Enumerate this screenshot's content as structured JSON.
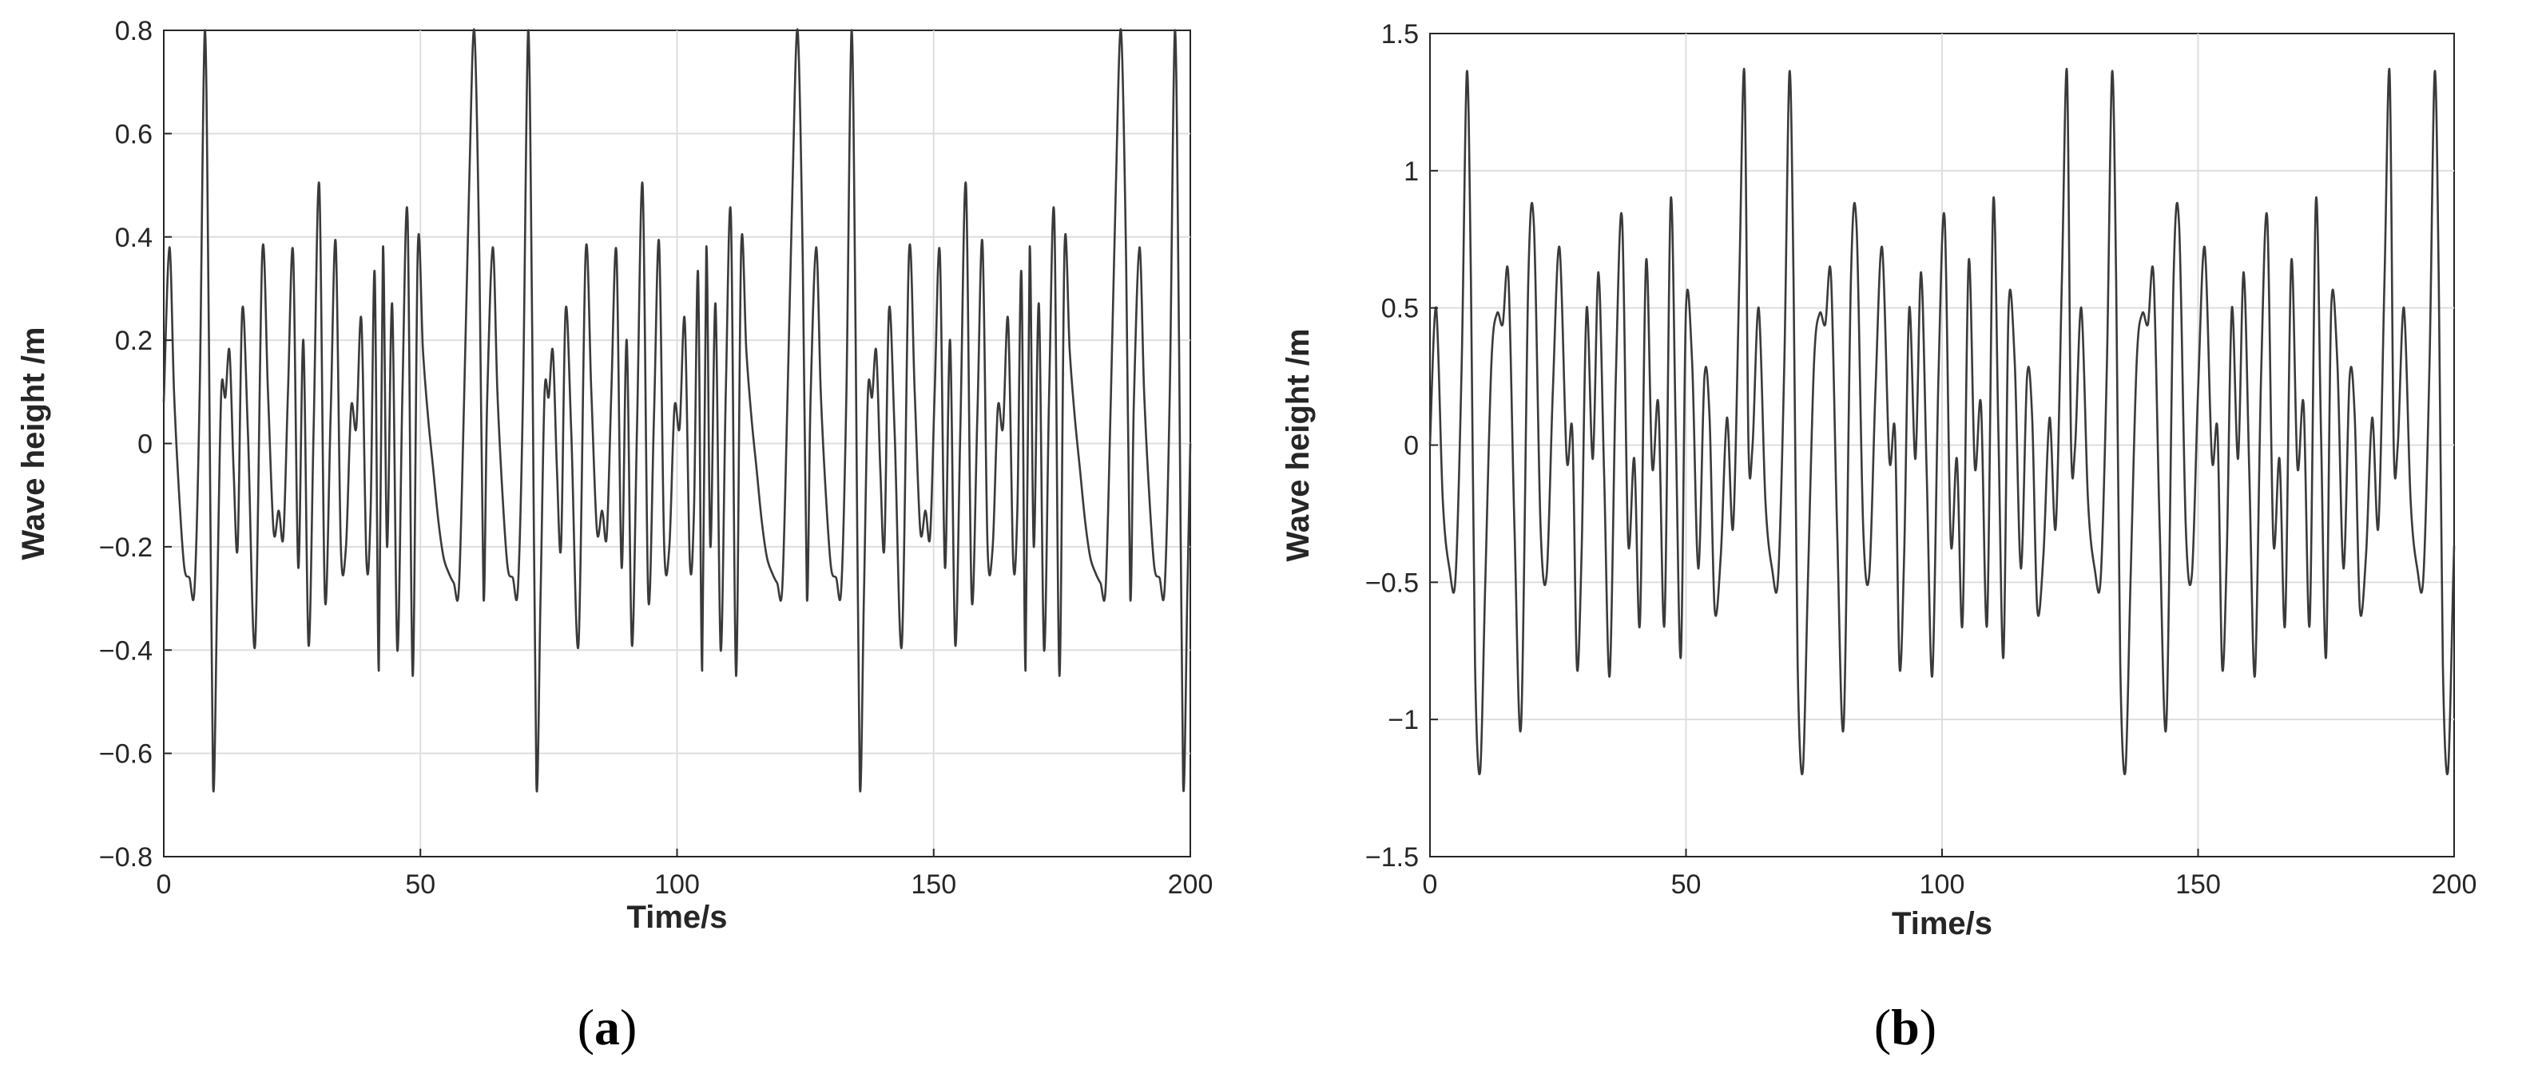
{
  "figure": {
    "panels": [
      {
        "label_open": "(",
        "label_letter": "a",
        "label_close": ")"
      },
      {
        "label_open": "(",
        "label_letter": "b",
        "label_close": ")"
      }
    ]
  },
  "chart_data": [
    {
      "type": "line",
      "title": "",
      "xlabel": "Time/s",
      "ylabel": "Wave height /m",
      "xlim": [
        0,
        200
      ],
      "ylim": [
        -0.8,
        0.8
      ],
      "xticks": [
        0,
        50,
        100,
        150,
        200
      ],
      "yticks": [
        -0.8,
        -0.6,
        -0.4,
        -0.2,
        0,
        0.2,
        0.4,
        0.6,
        0.8
      ],
      "ytick_labels": [
        "−0.8",
        "−0.6",
        "−0.4",
        "−0.2",
        "0",
        "0.2",
        "0.4",
        "0.6",
        "0.8"
      ],
      "xtick_labels": [
        "0",
        "50",
        "100",
        "150",
        "200"
      ],
      "grid": true,
      "line_color": "#3a3a3a",
      "series": [
        {
          "period": 63.0,
          "x": [
            0,
            1.1,
            2.0,
            3.0,
            4.0,
            5.0,
            6.0,
            7.0,
            8.0,
            8.8,
            9.6,
            10.4,
            11.2,
            12.0,
            12.8,
            13.6,
            14.4,
            15.3,
            16.4,
            17.8,
            19.2,
            20.3,
            21.4,
            22.4,
            23.3,
            24.2,
            25.2,
            26.2,
            27.2,
            28.2,
            29.2,
            30.3,
            31.4,
            32.5,
            33.5,
            34.5,
            35.5,
            36.5,
            37.5,
            38.5,
            39.5,
            40.3,
            41.1,
            41.9,
            42.7,
            43.5,
            44.5,
            45.5,
            46.5,
            47.5,
            48.5,
            49.5,
            50.5,
            51.5,
            52.5,
            53.5,
            54.5,
            55.5,
            56.5,
            57.5,
            58.5,
            59.5,
            60.5,
            61.5,
            62.3,
            63.0
          ],
          "y": [
            0.08,
            0.38,
            0.1,
            -0.1,
            -0.24,
            -0.26,
            -0.28,
            0.1,
            0.8,
            0.2,
            -0.66,
            -0.3,
            0.1,
            0.09,
            0.18,
            -0.05,
            -0.2,
            0.26,
            0.02,
            -0.39,
            0.37,
            0.1,
            -0.17,
            -0.13,
            -0.18,
            0.1,
            0.37,
            -0.24,
            0.2,
            -0.39,
            0.03,
            0.5,
            -0.3,
            0.05,
            0.39,
            -0.2,
            -0.2,
            0.07,
            0.03,
            0.24,
            -0.23,
            -0.13,
            0.33,
            -0.44,
            0.38,
            -0.2,
            0.27,
            -0.4,
            0.1,
            0.44,
            -0.45,
            0.38,
            0.18,
            0.05,
            -0.05,
            -0.15,
            -0.22,
            -0.25,
            -0.27,
            -0.28,
            0.08,
            0.5,
            0.8,
            0.35,
            -0.3,
            0.08
          ]
        }
      ]
    },
    {
      "type": "line",
      "title": "",
      "xlabel": "Time/s",
      "ylabel": "Wave height /m",
      "xlim": [
        0,
        200
      ],
      "ylim": [
        -1.5,
        1.5
      ],
      "xticks": [
        0,
        50,
        100,
        150,
        200
      ],
      "yticks": [
        -1.5,
        -1,
        -0.5,
        0,
        0.5,
        1,
        1.5
      ],
      "ytick_labels": [
        "−1.5",
        "−1",
        "−0.5",
        "0",
        "0.5",
        "1",
        "1.5"
      ],
      "xtick_labels": [
        "0",
        "50",
        "100",
        "150",
        "200"
      ],
      "grid": true,
      "line_color": "#3a3a3a",
      "series": [
        {
          "period": 63.0,
          "x": [
            0,
            1.2,
            2.5,
            3.8,
            5.0,
            6.2,
            7.2,
            8.0,
            8.8,
            9.8,
            10.8,
            12.0,
            13.1,
            14.2,
            15.3,
            16.5,
            17.8,
            19.2,
            20.3,
            21.6,
            22.8,
            24.0,
            25.3,
            26.7,
            27.8,
            28.7,
            29.6,
            30.6,
            31.8,
            32.9,
            34.0,
            35.1,
            36.3,
            37.5,
            38.7,
            39.9,
            41.0,
            42.2,
            43.4,
            44.6,
            45.8,
            47.0,
            48.0,
            49.0,
            50.0,
            51.2,
            52.4,
            53.6,
            54.6,
            55.6,
            56.8,
            58.0,
            59.2,
            60.4,
            61.4,
            62.2,
            63.0
          ],
          "y": [
            0.0,
            0.5,
            -0.2,
            -0.45,
            -0.48,
            0.3,
            1.36,
            0.6,
            -0.8,
            -1.19,
            -0.5,
            0.3,
            0.48,
            0.44,
            0.62,
            -0.3,
            -1.02,
            0.6,
            0.8,
            -0.3,
            -0.47,
            0.2,
            0.72,
            -0.05,
            0.05,
            -0.81,
            -0.4,
            0.5,
            -0.05,
            0.63,
            -0.1,
            -0.84,
            0.25,
            0.83,
            -0.35,
            -0.05,
            -0.65,
            0.67,
            -0.08,
            0.15,
            -0.65,
            0.89,
            0.05,
            -0.77,
            0.5,
            0.3,
            -0.45,
            0.25,
            0.1,
            -0.6,
            -0.4,
            0.1,
            -0.3,
            0.6,
            1.36,
            0.0,
            0.0
          ]
        }
      ]
    }
  ]
}
